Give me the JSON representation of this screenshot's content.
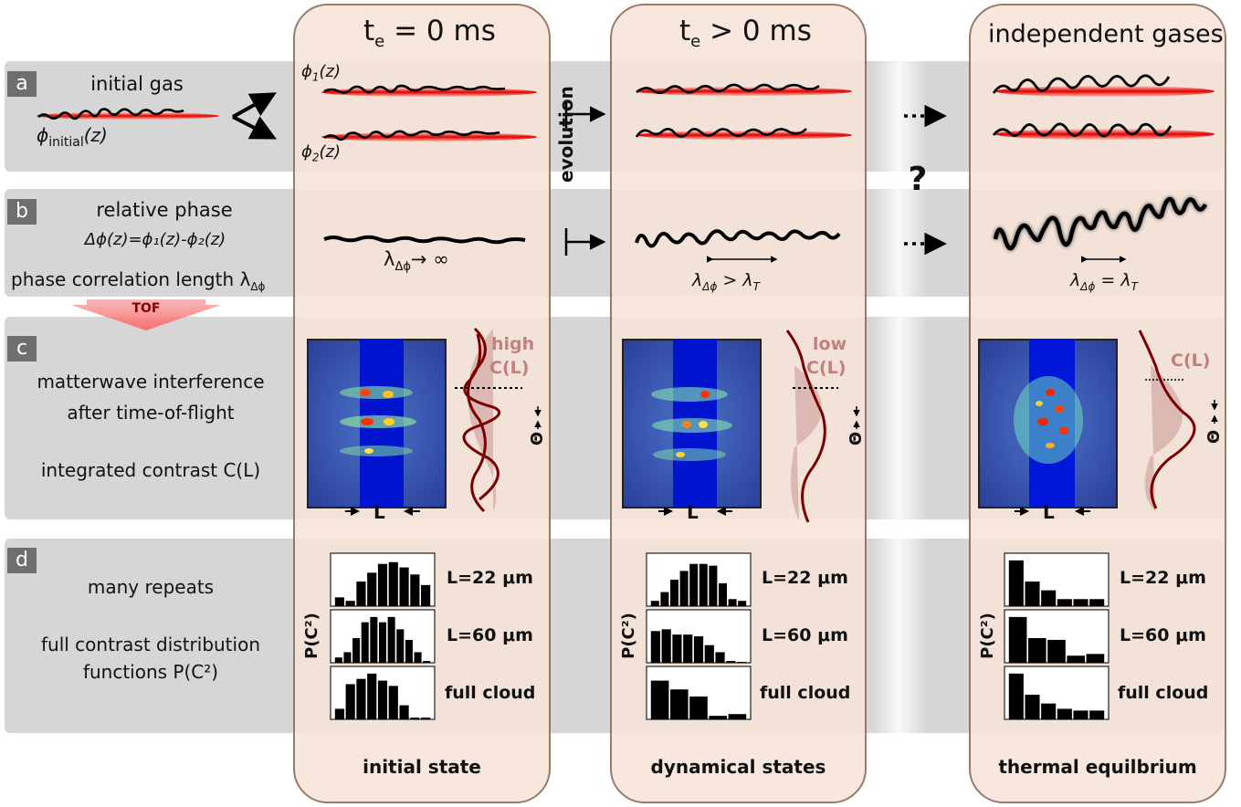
{
  "labels": {
    "a": "a",
    "b": "b",
    "c": "c",
    "d": "d"
  },
  "left": {
    "initial_gas": "initial gas",
    "phi_initial": "ϕ",
    "phi_initial_sub": "initial",
    "phi_initial_z": "(z)",
    "relative_phase": "relative phase",
    "delta_phi_eq": "Δϕ(z)=ϕ₁(z)-ϕ₂(z)",
    "phase_corr": "phase correlation length λ",
    "phase_corr_sub": "Δϕ",
    "tof": "TOF",
    "matterwave": "matterwave interference",
    "after_tof": "after time-of-flight",
    "integrated": "integrated contrast C(L)",
    "many_repeats": "many repeats",
    "full_contrast": "full contrast distribution",
    "functions": "functions P(C²)"
  },
  "columns": [
    {
      "title_prefix": "t",
      "title_sub": "e",
      "title_rest": " = 0 ms",
      "phi1": "ϕ",
      "phi1_sub": "1",
      "phi1_z": "(z)",
      "phi2": "ϕ",
      "phi2_sub": "2",
      "phi2_z": "(z)",
      "lambda_text": "λ",
      "lambda_sub": "Δϕ",
      "lambda_rest": "→ ∞",
      "contrast_a": "high",
      "contrast_b": "C(L)",
      "theta": "Θ",
      "L": "L",
      "hist_labels": [
        "L=22 μm",
        "L=60 μm",
        "full cloud"
      ],
      "ylabel": "P(C²)",
      "footer": "initial state"
    },
    {
      "title_prefix": "t",
      "title_sub": "e",
      "title_rest": " > 0 ms",
      "lambda_text": "λ",
      "lambda_sub": "Δϕ",
      "lambda_rest": " > λ",
      "lambda_rest_sub": "T",
      "contrast_a": "low",
      "contrast_b": "C(L)",
      "theta": "Θ",
      "L": "L",
      "hist_labels": [
        "L=22 μm",
        "L=60 μm",
        "full cloud"
      ],
      "ylabel": "P(C²)",
      "footer": "dynamical states"
    },
    {
      "title": "independent gases",
      "lambda_text": "λ",
      "lambda_sub": "Δϕ",
      "lambda_rest": " = λ",
      "lambda_rest_sub": "T",
      "contrast_b": "C(L)",
      "theta": "Θ",
      "L": "L",
      "hist_labels": [
        "L=22 μm",
        "L=60 μm",
        "full cloud"
      ],
      "ylabel": "P(C²)",
      "footer": "thermal equilbrium"
    }
  ],
  "evolution": "evolution",
  "question": "?",
  "chart_data": [
    {
      "type": "bar",
      "title": "",
      "series": [
        {
          "values": [
            0.5,
            0.3,
            1.4,
            1.9,
            2.4,
            2.5,
            2.2,
            1.8,
            1.2
          ]
        },
        {
          "values": [
            0.3,
            0.6,
            1.4,
            2.3,
            2.6,
            2.3,
            2.6,
            1.9,
            1.3,
            0.6,
            0.1
          ]
        },
        {
          "values": [
            0.6,
            2.0,
            2.3,
            2.6,
            2.2,
            1.9,
            0.8,
            0.1,
            0.1
          ]
        }
      ]
    },
    {
      "type": "bar",
      "title": "",
      "series": [
        {
          "values": [
            0.3,
            0.8,
            1.5,
            2.0,
            2.4,
            2.4,
            2.3,
            1.3,
            0.4,
            0.3
          ]
        },
        {
          "values": [
            1.8,
            1.9,
            1.6,
            1.6,
            1.5,
            1.0,
            0.6,
            0.1,
            0.05
          ]
        },
        {
          "values": [
            2.2,
            1.7,
            1.3,
            0.2,
            0.3
          ]
        }
      ]
    },
    {
      "type": "bar",
      "title": "",
      "series": [
        {
          "values": [
            2.6,
            1.4,
            0.9,
            0.4,
            0.4,
            0.4
          ]
        },
        {
          "values": [
            2.6,
            1.4,
            1.3,
            0.4,
            0.5
          ]
        },
        {
          "values": [
            2.6,
            1.4,
            0.9,
            0.6,
            0.5,
            0.5
          ]
        }
      ]
    }
  ],
  "colors": {
    "band": "#d6d6d6",
    "column": "#f6e4d8",
    "column_border": "#8a6a58",
    "curve": "#7a0000",
    "label_box": "#6f6f6f"
  }
}
